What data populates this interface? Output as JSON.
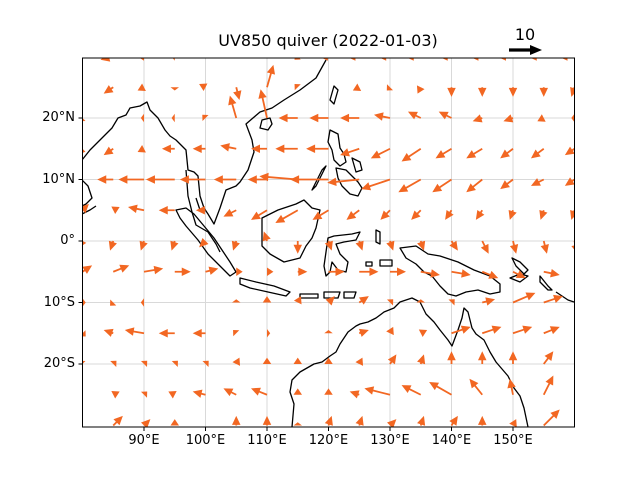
{
  "chart_data": {
    "type": "quiver",
    "title": "UV850 quiver (2022-01-03)",
    "xlabel": "",
    "ylabel": "",
    "xlim": [
      80,
      160
    ],
    "ylim": [
      -30,
      30
    ],
    "grid": true,
    "arrow_color": "#f26722",
    "coastline_color": "#000000",
    "quiver_key": {
      "value": 10,
      "label": "10",
      "position": "top-right"
    },
    "x_ticks": [
      {
        "value": 90,
        "label": "90°E"
      },
      {
        "value": 100,
        "label": "100°E"
      },
      {
        "value": 110,
        "label": "110°E"
      },
      {
        "value": 120,
        "label": "120°E"
      },
      {
        "value": 130,
        "label": "130°E"
      },
      {
        "value": 140,
        "label": "140°E"
      },
      {
        "value": 150,
        "label": "150°E"
      }
    ],
    "y_ticks": [
      {
        "value": 20,
        "label": "20°N"
      },
      {
        "value": 10,
        "label": "10°N"
      },
      {
        "value": 0,
        "label": "0°"
      },
      {
        "value": -10,
        "label": "10°S"
      },
      {
        "value": -20,
        "label": "20°S"
      }
    ],
    "grid_lon": [
      80,
      85,
      90,
      95,
      100,
      105,
      110,
      115,
      120,
      125,
      130,
      135,
      140,
      145,
      150,
      155,
      160
    ],
    "grid_lat": [
      30,
      25,
      20,
      15,
      10,
      5,
      0,
      -5,
      -10,
      -15,
      -20,
      -25,
      -30
    ],
    "u": [
      [
        -3,
        -4,
        -2,
        -1,
        0,
        0,
        0,
        -1,
        -3,
        -4,
        -4,
        -5,
        -4,
        -4,
        -5,
        -5,
        -5
      ],
      [
        -2,
        -3,
        -2,
        0,
        -2,
        1,
        2,
        -1,
        0,
        -2,
        -1,
        -1,
        0,
        0,
        0,
        0,
        -1
      ],
      [
        -1,
        0,
        -1,
        -1,
        -1,
        -2,
        -2,
        -6,
        -6,
        -6,
        -5,
        -4,
        -4,
        -3,
        -3,
        -2,
        -1
      ],
      [
        -2,
        -3,
        -2,
        -4,
        -4,
        -5,
        -5,
        -7,
        -7,
        -6,
        -6,
        -6,
        -5,
        -5,
        -4,
        -4,
        -3
      ],
      [
        -4,
        -5,
        -8,
        -9,
        -8,
        -7,
        -6,
        -12,
        -12,
        -10,
        -9,
        -7,
        -6,
        -5,
        -4,
        -4,
        -3
      ],
      [
        2,
        2,
        -5,
        -5,
        -3,
        -4,
        -5,
        -7,
        -5,
        -4,
        -3,
        -3,
        -2,
        -2,
        -1,
        -1,
        -1
      ],
      [
        -1,
        -1,
        -1,
        -1,
        -2,
        -1,
        -1,
        0,
        1,
        1,
        1,
        1,
        2,
        2,
        1,
        1,
        1
      ],
      [
        3,
        5,
        6,
        5,
        4,
        2,
        2,
        3,
        5,
        6,
        5,
        6,
        6,
        5,
        4,
        5,
        6
      ],
      [
        1,
        -1,
        -1,
        0,
        0,
        0,
        0,
        1,
        2,
        3,
        1,
        0,
        1,
        4,
        7,
        6,
        5
      ],
      [
        1,
        -3,
        -6,
        -5,
        -4,
        -1,
        1,
        0,
        0,
        3,
        1,
        2,
        6,
        6,
        6,
        5,
        4
      ],
      [
        -1,
        1,
        1,
        1,
        1,
        1,
        0,
        0,
        0,
        1,
        2,
        1,
        0,
        0,
        0,
        3,
        3
      ],
      [
        0,
        2,
        1,
        -2,
        -4,
        -4,
        -5,
        0,
        0,
        -3,
        -8,
        -6,
        -7,
        -4,
        -1,
        3,
        4
      ],
      [
        0,
        3,
        2,
        0,
        0,
        0,
        0,
        0,
        1,
        1,
        2,
        1,
        2,
        0,
        1,
        5,
        6
      ]
    ],
    "v": [
      [
        0,
        -1,
        0,
        0,
        0,
        0,
        2,
        -1,
        0,
        0,
        0,
        0,
        0,
        0,
        0,
        0,
        0
      ],
      [
        0,
        -2,
        -1,
        -1,
        1,
        -4,
        7,
        1,
        0,
        -1,
        -1,
        -2,
        -3,
        -3,
        -3,
        -3,
        -3
      ],
      [
        -1,
        0,
        0,
        0,
        1,
        7,
        9,
        0,
        0,
        0,
        1,
        2,
        2,
        -1,
        -1,
        -1,
        0
      ],
      [
        -2,
        -2,
        -1,
        0,
        0,
        1,
        0,
        0,
        0,
        -2,
        -3,
        -4,
        -3,
        -3,
        -3,
        -3,
        -2
      ],
      [
        0,
        0,
        0,
        0,
        0,
        0,
        0,
        1,
        0,
        -1,
        -3,
        -4,
        -4,
        -4,
        -3,
        -2,
        -2
      ],
      [
        2,
        1,
        1,
        0,
        0,
        -2,
        -3,
        -4,
        -3,
        -3,
        -3,
        -3,
        -3,
        -3,
        -3,
        -3,
        -3
      ],
      [
        -2,
        -3,
        -3,
        -3,
        -2,
        -3,
        3,
        -4,
        -3,
        -3,
        -3,
        -3,
        -3,
        -4,
        -4,
        -4,
        -4
      ],
      [
        2,
        2,
        1,
        0,
        1,
        0,
        0,
        0,
        0,
        0,
        0,
        -1,
        -1,
        -2,
        -2,
        -1,
        0
      ],
      [
        0,
        -1,
        0,
        0,
        0,
        1,
        2,
        2,
        2,
        2,
        1,
        1,
        1,
        1,
        3,
        2,
        1
      ],
      [
        -1,
        1,
        1,
        0,
        0,
        1,
        0,
        0,
        1,
        1,
        2,
        1,
        2,
        2,
        2,
        2,
        1
      ],
      [
        1,
        1,
        1,
        1,
        1,
        2,
        2,
        2,
        2,
        2,
        3,
        3,
        4,
        4,
        4,
        4,
        3
      ],
      [
        0,
        1,
        1,
        1,
        1,
        2,
        2,
        2,
        2,
        1,
        2,
        3,
        4,
        5,
        5,
        6,
        4
      ],
      [
        0,
        3,
        2,
        2,
        0,
        3,
        3,
        1,
        3,
        3,
        2,
        3,
        3,
        3,
        2,
        5,
        7
      ]
    ]
  }
}
